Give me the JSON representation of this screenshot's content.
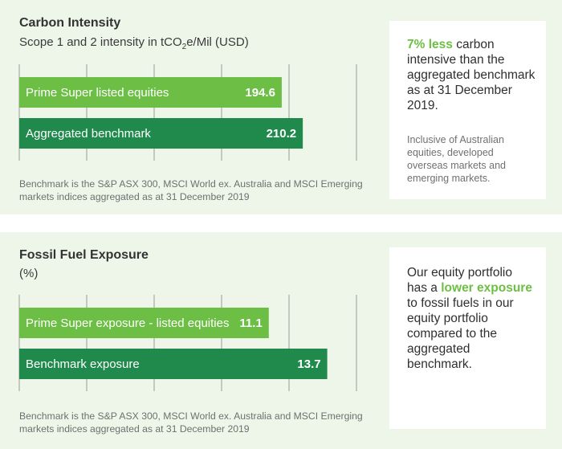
{
  "carbon": {
    "title": "Carbon Intensity",
    "subtitle_pre": "Scope 1 and 2 intensity in tCO",
    "subtitle_sub": "2",
    "subtitle_post": "e/Mil (USD)",
    "footnote": "Benchmark is the S&P ASX 300, MSCI World ex. Australia and MSCI Emerging markets indices aggregated as at 31 December 2019",
    "box_highlight": "7% less",
    "box_text": " carbon intensive than the aggregated benchmark as at 31 December 2019.",
    "box_sub": "Inclusive of Australian equities, developed overseas markets and emerging markets."
  },
  "fossil": {
    "title": "Fossil Fuel Exposure",
    "subtitle": "(%)",
    "footnote": "Benchmark is the S&P ASX 300, MSCI World ex. Australia and MSCI Emerging markets indices aggregated as at 31 December 2019",
    "box_text_pre": "Our equity portfolio has a ",
    "box_highlight": "lower exposure",
    "box_text_post": " to fossil fuels in our equity portfolio compared to the aggregated benchmark."
  },
  "colors": {
    "light_bar": "#6cbf44",
    "dark_bar": "#1f8a4c",
    "panel_bg": "#eef6ea",
    "grid": "#9a9a9a"
  },
  "chart_data": [
    {
      "type": "bar",
      "orientation": "horizontal",
      "categories": [
        "Prime Super listed equities",
        "Aggregated benchmark"
      ],
      "values": [
        194.6,
        210.2
      ],
      "xlim": [
        0,
        250
      ],
      "grid": true
    },
    {
      "type": "bar",
      "orientation": "horizontal",
      "categories": [
        "Prime Super exposure - listed equities",
        "Benchmark exposure"
      ],
      "values": [
        11.1,
        13.7
      ],
      "xlim": [
        0,
        15
      ],
      "grid": true
    }
  ]
}
